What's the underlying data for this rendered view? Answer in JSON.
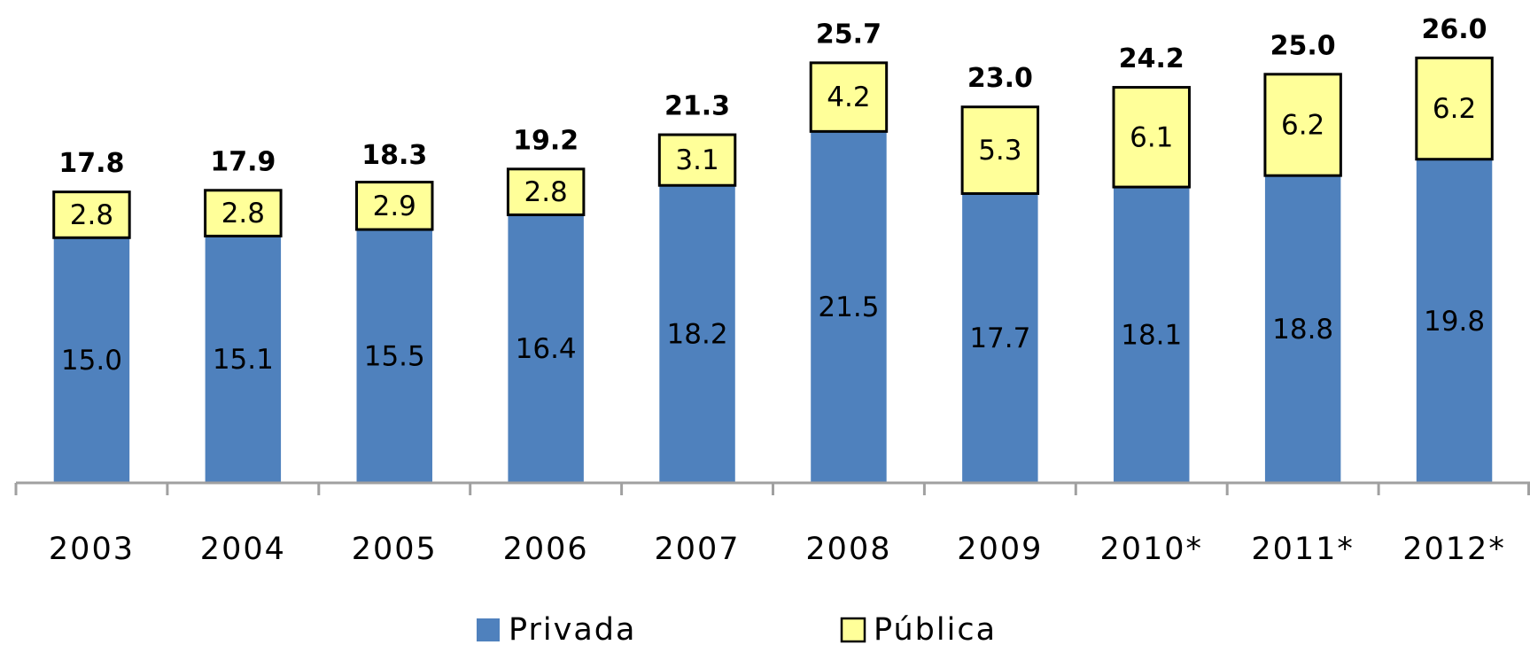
{
  "chart_data": {
    "type": "stacked_bar",
    "categories": [
      "2003",
      "2004",
      "2005",
      "2006",
      "2007",
      "2008",
      "2009",
      "2010*",
      "2011*",
      "2012*"
    ],
    "series": [
      {
        "name": "Privada",
        "color": "#4f81bd",
        "values": [
          15.0,
          15.1,
          15.5,
          16.4,
          18.2,
          21.5,
          17.7,
          18.1,
          18.8,
          19.8
        ],
        "value_labels": [
          "15.0",
          "15.1",
          "15.5",
          "16.4",
          "18.2",
          "21.5",
          "17.7",
          "18.1",
          "18.8",
          "19.8"
        ]
      },
      {
        "name": "Pública",
        "color": "#ffff99",
        "values": [
          2.8,
          2.8,
          2.9,
          2.8,
          3.1,
          4.2,
          5.3,
          6.1,
          6.2,
          6.2
        ],
        "value_labels": [
          "2.8",
          "2.8",
          "2.9",
          "2.8",
          "3.1",
          "4.2",
          "5.3",
          "6.1",
          "6.2",
          "6.2"
        ]
      }
    ],
    "totals": {
      "values": [
        17.8,
        17.9,
        18.3,
        19.2,
        21.3,
        25.7,
        23.0,
        24.2,
        25.0,
        26.0
      ],
      "value_labels": [
        "17.8",
        "17.9",
        "18.3",
        "19.2",
        "21.3",
        "25.7",
        "23.0",
        "24.2",
        "25.0",
        "26.0"
      ]
    },
    "ylim": [
      0,
      29
    ],
    "legend": "bottom"
  }
}
